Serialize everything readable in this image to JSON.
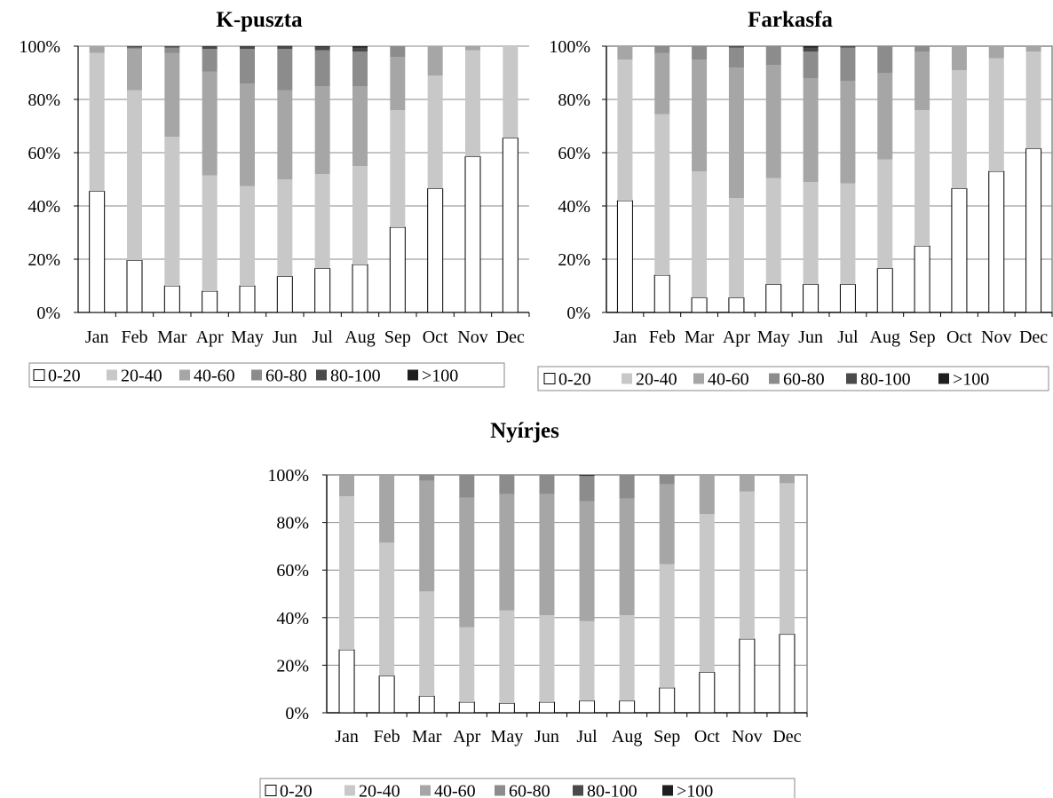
{
  "legend_categories": [
    "0-20",
    "20-40",
    "40-60",
    "60-80",
    "80-100",
    ">100"
  ],
  "colors": {
    "0-20": "#ffffff",
    "20-40": "#c8c8c8",
    "40-60": "#a6a6a6",
    "60-80": "#8c8c8c",
    "80-100": "#4a4a4a",
    ">100": "#1e1e1e"
  },
  "chart_data": [
    {
      "type": "bar",
      "stacked": "percent",
      "title": "K-puszta",
      "categories": [
        "Jan",
        "Feb",
        "Mar",
        "Apr",
        "May",
        "Jun",
        "Jul",
        "Aug",
        "Sep",
        "Oct",
        "Nov",
        "Dec"
      ],
      "y_ticks": [
        "0%",
        "20%",
        "40%",
        "60%",
        "80%",
        "100%"
      ],
      "ylim": [
        0,
        100
      ],
      "legend": "bottom",
      "series": [
        {
          "name": "0-20",
          "values": [
            45.5,
            19.5,
            10,
            8,
            10,
            13.5,
            16.5,
            18,
            32,
            46.5,
            58.5,
            65.5
          ]
        },
        {
          "name": "20-40",
          "values": [
            52,
            64,
            56,
            43.5,
            37.5,
            36.5,
            35.5,
            37,
            44,
            42.5,
            40,
            34.5
          ]
        },
        {
          "name": "40-60",
          "values": [
            2.5,
            15.5,
            31.5,
            39,
            38.5,
            33.5,
            33,
            30,
            20,
            11,
            1.5,
            0
          ]
        },
        {
          "name": "60-80",
          "values": [
            0,
            0.5,
            2,
            8.5,
            13,
            15.5,
            13.5,
            13,
            4,
            0,
            0,
            0
          ]
        },
        {
          "name": "80-100",
          "values": [
            0,
            0.5,
            0.5,
            0.8,
            0.8,
            0.8,
            1.2,
            1.5,
            0,
            0,
            0,
            0
          ]
        },
        {
          "name": ">100",
          "values": [
            0,
            0,
            0,
            0.2,
            0.2,
            0.3,
            0.3,
            0.5,
            0,
            0,
            0,
            0
          ]
        }
      ]
    },
    {
      "type": "bar",
      "stacked": "percent",
      "title": "Farkasfa",
      "categories": [
        "Jan",
        "Feb",
        "Mar",
        "Apr",
        "May",
        "Jun",
        "Jul",
        "Aug",
        "Sep",
        "Oct",
        "Nov",
        "Dec"
      ],
      "y_ticks": [
        "0%",
        "20%",
        "40%",
        "60%",
        "80%",
        "100%"
      ],
      "ylim": [
        0,
        100
      ],
      "legend": "bottom",
      "series": [
        {
          "name": "0-20",
          "values": [
            42,
            14,
            5.5,
            5.5,
            10.5,
            10.5,
            10.5,
            16.5,
            25,
            46.5,
            53,
            61.5
          ]
        },
        {
          "name": "20-40",
          "values": [
            53,
            60.5,
            47.5,
            37.5,
            40,
            38.5,
            38,
            41,
            51,
            44.5,
            42.5,
            36.5
          ]
        },
        {
          "name": "40-60",
          "values": [
            5,
            23,
            42,
            49,
            42.5,
            39,
            38.5,
            32.5,
            22,
            9,
            4.5,
            2
          ]
        },
        {
          "name": "60-80",
          "values": [
            0,
            2.5,
            5,
            7.5,
            7,
            10,
            12.5,
            10,
            2,
            0,
            0,
            0
          ]
        },
        {
          "name": "80-100",
          "values": [
            0,
            0,
            0,
            0.5,
            0,
            1.5,
            0.5,
            0,
            0,
            0,
            0,
            0
          ]
        },
        {
          "name": ">100",
          "values": [
            0,
            0,
            0,
            0,
            0,
            0.5,
            0,
            0,
            0,
            0,
            0,
            0
          ]
        }
      ]
    },
    {
      "type": "bar",
      "stacked": "percent",
      "title": "Nyírjes",
      "categories": [
        "Jan",
        "Feb",
        "Mar",
        "Apr",
        "May",
        "Jun",
        "Jul",
        "Aug",
        "Sep",
        "Oct",
        "Nov",
        "Dec"
      ],
      "y_ticks": [
        "0%",
        "20%",
        "40%",
        "60%",
        "80%",
        "100%"
      ],
      "ylim": [
        0,
        100
      ],
      "legend": "bottom",
      "series": [
        {
          "name": "0-20",
          "values": [
            26.5,
            15.5,
            7,
            4.5,
            4,
            4.5,
            5,
            5,
            10.5,
            17,
            31,
            33
          ]
        },
        {
          "name": "20-40",
          "values": [
            64.5,
            56,
            44,
            31.5,
            39,
            36.5,
            33.5,
            36,
            52,
            66.5,
            62,
            63.5
          ]
        },
        {
          "name": "40-60",
          "values": [
            9,
            28.5,
            46.5,
            54.5,
            49,
            51,
            50.5,
            49,
            33.5,
            16.5,
            7,
            3.5
          ]
        },
        {
          "name": "60-80",
          "values": [
            0,
            0,
            2.5,
            9.5,
            8,
            8,
            10.5,
            10,
            4,
            0,
            0,
            0
          ]
        },
        {
          "name": "80-100",
          "values": [
            0,
            0,
            0,
            0,
            0,
            0,
            0.3,
            0,
            0,
            0,
            0,
            0
          ]
        },
        {
          "name": ">100",
          "values": [
            0,
            0,
            0,
            0,
            0,
            0,
            0.2,
            0,
            0,
            0,
            0,
            0
          ]
        }
      ]
    }
  ]
}
